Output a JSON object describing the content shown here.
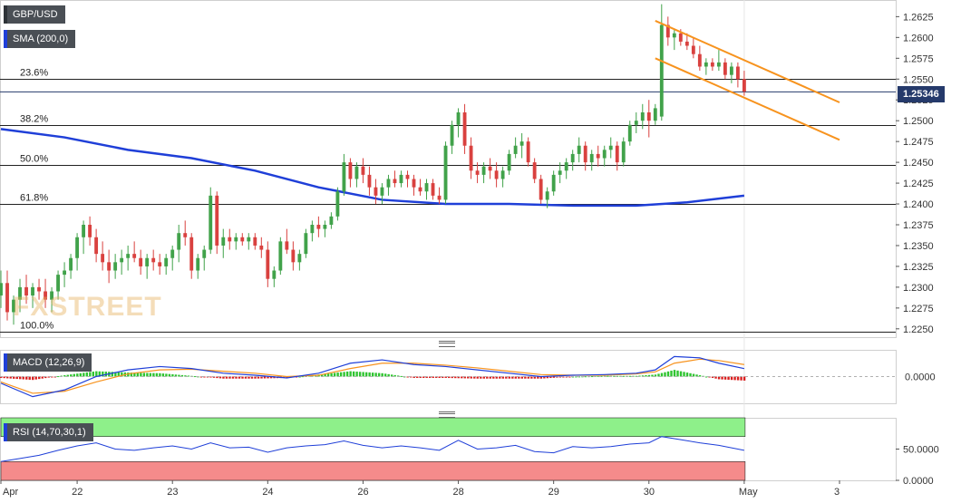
{
  "symbol": "GBP/USD",
  "watermark": "FXSTREET",
  "colors": {
    "bull": "#41a24a",
    "bear": "#d9413f",
    "sma": "#1f3fd8",
    "channel": "#f7931e",
    "macd_line": "#1f3fd8",
    "signal_line": "#f7931e",
    "rsi_line": "#1f3fd8",
    "rsi_overbought_fill": "#8ef08a",
    "rsi_oversold_fill": "#f58b8b"
  },
  "legends": {
    "sma": "SMA (200,0)",
    "macd": "MACD (12,26,9)",
    "rsi": "RSI (14,70,30,1)"
  },
  "current_price": "1.25346",
  "chart_data": [
    {
      "type": "candlestick",
      "panel": "price",
      "ylim": [
        1.224,
        1.2645
      ],
      "y_ticks": [
        "1.2625",
        "1.2600",
        "1.2575",
        "1.2550",
        "1.2525",
        "1.2500",
        "1.2475",
        "1.2450",
        "1.2425",
        "1.2400",
        "1.2375",
        "1.2350",
        "1.2325",
        "1.2300",
        "1.2275",
        "1.2250"
      ],
      "x_ticks": [
        "Apr",
        "22",
        "23",
        "24",
        "26",
        "28",
        "29",
        "30",
        "May",
        "3"
      ],
      "x_tick_positions": [
        0,
        12,
        27,
        42,
        57,
        72,
        87,
        102,
        117,
        132
      ],
      "x_range": [
        0,
        140
      ],
      "bars": [
        [
          0,
          1.229,
          1.232,
          1.2275,
          1.2305
        ],
        [
          1,
          1.2305,
          1.232,
          1.226,
          1.227
        ],
        [
          2,
          1.227,
          1.229,
          1.2255,
          1.2285
        ],
        [
          3,
          1.2285,
          1.231,
          1.227,
          1.23
        ],
        [
          4,
          1.23,
          1.2315,
          1.228,
          1.229
        ],
        [
          5,
          1.229,
          1.2305,
          1.2275,
          1.23
        ],
        [
          6,
          1.23,
          1.231,
          1.2285,
          1.2295
        ],
        [
          7,
          1.2295,
          1.231,
          1.2275,
          1.2285
        ],
        [
          8,
          1.2285,
          1.23,
          1.227,
          1.2295
        ],
        [
          9,
          1.2295,
          1.232,
          1.2285,
          1.2315
        ],
        [
          10,
          1.2315,
          1.233,
          1.23,
          1.232
        ],
        [
          11,
          1.232,
          1.234,
          1.231,
          1.2335
        ],
        [
          12,
          1.2335,
          1.2365,
          1.232,
          1.236
        ],
        [
          13,
          1.236,
          1.238,
          1.234,
          1.2375
        ],
        [
          14,
          1.2375,
          1.2385,
          1.235,
          1.236
        ],
        [
          15,
          1.236,
          1.237,
          1.233,
          1.234
        ],
        [
          16,
          1.234,
          1.2355,
          1.232,
          1.233
        ],
        [
          17,
          1.233,
          1.2345,
          1.2305,
          1.232
        ],
        [
          18,
          1.232,
          1.234,
          1.231,
          1.233
        ],
        [
          19,
          1.233,
          1.2345,
          1.2315,
          1.2335
        ],
        [
          20,
          1.2335,
          1.235,
          1.232,
          1.234
        ],
        [
          21,
          1.234,
          1.2355,
          1.233,
          1.2335
        ],
        [
          22,
          1.2335,
          1.2345,
          1.2315,
          1.2325
        ],
        [
          23,
          1.2325,
          1.234,
          1.231,
          1.2335
        ],
        [
          24,
          1.2335,
          1.2345,
          1.232,
          1.233
        ],
        [
          25,
          1.233,
          1.234,
          1.2315,
          1.2325
        ],
        [
          26,
          1.2325,
          1.234,
          1.2315,
          1.2335
        ],
        [
          27,
          1.2335,
          1.235,
          1.232,
          1.2345
        ],
        [
          28,
          1.2345,
          1.2375,
          1.233,
          1.2365
        ],
        [
          29,
          1.2365,
          1.238,
          1.235,
          1.236
        ],
        [
          30,
          1.236,
          1.2365,
          1.231,
          1.232
        ],
        [
          31,
          1.232,
          1.234,
          1.231,
          1.2335
        ],
        [
          32,
          1.2335,
          1.235,
          1.232,
          1.2345
        ],
        [
          33,
          1.2345,
          1.242,
          1.234,
          1.241
        ],
        [
          34,
          1.241,
          1.2415,
          1.234,
          1.235
        ],
        [
          35,
          1.235,
          1.237,
          1.2335,
          1.236
        ],
        [
          36,
          1.236,
          1.237,
          1.2345,
          1.2355
        ],
        [
          37,
          1.2355,
          1.2365,
          1.2345,
          1.236
        ],
        [
          38,
          1.236,
          1.2365,
          1.235,
          1.2355
        ],
        [
          39,
          1.2355,
          1.2365,
          1.2345,
          1.236
        ],
        [
          40,
          1.236,
          1.2365,
          1.2345,
          1.235
        ],
        [
          41,
          1.235,
          1.236,
          1.2335,
          1.2345
        ],
        [
          42,
          1.2345,
          1.2355,
          1.23,
          1.231
        ],
        [
          43,
          1.231,
          1.2325,
          1.23,
          1.232
        ],
        [
          44,
          1.232,
          1.236,
          1.2315,
          1.2355
        ],
        [
          45,
          1.2355,
          1.237,
          1.234,
          1.2345
        ],
        [
          46,
          1.2345,
          1.2355,
          1.232,
          1.233
        ],
        [
          47,
          1.233,
          1.2345,
          1.232,
          1.234
        ],
        [
          48,
          1.234,
          1.237,
          1.2335,
          1.2365
        ],
        [
          49,
          1.2365,
          1.238,
          1.2355,
          1.2375
        ],
        [
          50,
          1.2375,
          1.2385,
          1.236,
          1.237
        ],
        [
          51,
          1.237,
          1.238,
          1.236,
          1.2375
        ],
        [
          52,
          1.2375,
          1.239,
          1.237,
          1.2385
        ],
        [
          53,
          1.2385,
          1.242,
          1.238,
          1.2415
        ],
        [
          54,
          1.2415,
          1.246,
          1.241,
          1.245
        ],
        [
          55,
          1.245,
          1.2455,
          1.242,
          1.243
        ],
        [
          56,
          1.243,
          1.245,
          1.242,
          1.2445
        ],
        [
          57,
          1.2445,
          1.2455,
          1.2425,
          1.2435
        ],
        [
          58,
          1.2435,
          1.2445,
          1.241,
          1.242
        ],
        [
          59,
          1.242,
          1.243,
          1.24,
          1.241
        ],
        [
          60,
          1.241,
          1.2425,
          1.24,
          1.242
        ],
        [
          61,
          1.242,
          1.2435,
          1.241,
          1.243
        ],
        [
          62,
          1.243,
          1.244,
          1.242,
          1.2425
        ],
        [
          63,
          1.2425,
          1.244,
          1.242,
          1.2435
        ],
        [
          64,
          1.2435,
          1.244,
          1.242,
          1.243
        ],
        [
          65,
          1.243,
          1.2435,
          1.241,
          1.242
        ],
        [
          66,
          1.242,
          1.243,
          1.241,
          1.2415
        ],
        [
          67,
          1.2415,
          1.243,
          1.2405,
          1.2425
        ],
        [
          68,
          1.2425,
          1.243,
          1.2405,
          1.241
        ],
        [
          69,
          1.241,
          1.242,
          1.24,
          1.2405
        ],
        [
          70,
          1.2405,
          1.2475,
          1.24,
          1.247
        ],
        [
          71,
          1.247,
          1.25,
          1.246,
          1.2495
        ],
        [
          72,
          1.2495,
          1.2515,
          1.248,
          1.251
        ],
        [
          73,
          1.251,
          1.252,
          1.246,
          1.247
        ],
        [
          74,
          1.247,
          1.248,
          1.243,
          1.244
        ],
        [
          75,
          1.244,
          1.245,
          1.2425,
          1.2435
        ],
        [
          76,
          1.2435,
          1.245,
          1.2425,
          1.2445
        ],
        [
          77,
          1.2445,
          1.2455,
          1.243,
          1.244
        ],
        [
          78,
          1.244,
          1.245,
          1.242,
          1.243
        ],
        [
          79,
          1.243,
          1.2445,
          1.242,
          1.244
        ],
        [
          80,
          1.244,
          1.2465,
          1.2435,
          1.246
        ],
        [
          81,
          1.246,
          1.248,
          1.2455,
          1.247
        ],
        [
          82,
          1.247,
          1.2485,
          1.2455,
          1.2475
        ],
        [
          83,
          1.2475,
          1.248,
          1.2445,
          1.245
        ],
        [
          84,
          1.245,
          1.2455,
          1.2425,
          1.243
        ],
        [
          85,
          1.243,
          1.2435,
          1.24,
          1.2405
        ],
        [
          86,
          1.2405,
          1.242,
          1.2395,
          1.2415
        ],
        [
          87,
          1.2415,
          1.244,
          1.241,
          1.2435
        ],
        [
          88,
          1.2435,
          1.245,
          1.2425,
          1.244
        ],
        [
          89,
          1.244,
          1.2455,
          1.243,
          1.245
        ],
        [
          90,
          1.245,
          1.2465,
          1.244,
          1.246
        ],
        [
          91,
          1.246,
          1.248,
          1.245,
          1.247
        ],
        [
          92,
          1.247,
          1.2475,
          1.244,
          1.245
        ],
        [
          93,
          1.245,
          1.2465,
          1.244,
          1.246
        ],
        [
          94,
          1.246,
          1.247,
          1.2445,
          1.2455
        ],
        [
          95,
          1.2455,
          1.247,
          1.2445,
          1.2465
        ],
        [
          96,
          1.2465,
          1.248,
          1.2455,
          1.247
        ],
        [
          97,
          1.247,
          1.2475,
          1.244,
          1.245
        ],
        [
          98,
          1.245,
          1.248,
          1.2445,
          1.2475
        ],
        [
          99,
          1.2475,
          1.25,
          1.247,
          1.2495
        ],
        [
          100,
          1.2495,
          1.251,
          1.2485,
          1.25
        ],
        [
          101,
          1.25,
          1.252,
          1.249,
          1.251
        ],
        [
          102,
          1.251,
          1.2525,
          1.248,
          1.25
        ],
        [
          103,
          1.25,
          1.252,
          1.2495,
          1.2515
        ],
        [
          104,
          1.2505,
          1.264,
          1.25,
          1.2615
        ],
        [
          105,
          1.2615,
          1.2625,
          1.259,
          1.26
        ],
        [
          106,
          1.26,
          1.261,
          1.2585,
          1.2605
        ],
        [
          107,
          1.2605,
          1.261,
          1.259,
          1.2595
        ],
        [
          108,
          1.2595,
          1.2605,
          1.2585,
          1.259
        ],
        [
          109,
          1.259,
          1.26,
          1.2575,
          1.258
        ],
        [
          110,
          1.258,
          1.259,
          1.256,
          1.2565
        ],
        [
          111,
          1.2565,
          1.2575,
          1.2555,
          1.257
        ],
        [
          112,
          1.257,
          1.2575,
          1.256,
          1.2565
        ],
        [
          113,
          1.2565,
          1.2585,
          1.256,
          1.257
        ],
        [
          114,
          1.257,
          1.2575,
          1.255,
          1.2555
        ],
        [
          115,
          1.2555,
          1.257,
          1.2545,
          1.2565
        ],
        [
          116,
          1.2565,
          1.257,
          1.254,
          1.255
        ],
        [
          117,
          1.255,
          1.256,
          1.253,
          1.2535
        ]
      ],
      "sma_200": [
        [
          0,
          1.249
        ],
        [
          10,
          1.248
        ],
        [
          20,
          1.2465
        ],
        [
          30,
          1.2455
        ],
        [
          40,
          1.244
        ],
        [
          50,
          1.242
        ],
        [
          60,
          1.2405
        ],
        [
          70,
          1.24
        ],
        [
          80,
          1.24
        ],
        [
          90,
          1.2398
        ],
        [
          100,
          1.2398
        ],
        [
          108,
          1.2402
        ],
        [
          117,
          1.241
        ]
      ],
      "fibonacci": [
        {
          "label": "23.6%",
          "price": 1.255
        },
        {
          "label": "38.2%",
          "price": 1.2495
        },
        {
          "label": "50.0%",
          "price": 1.2447
        },
        {
          "label": "61.8%",
          "price": 1.24
        },
        {
          "label": "100.0%",
          "price": 1.2247
        }
      ],
      "channel": [
        {
          "x1": 103,
          "y1": 1.262,
          "x2": 132,
          "y2": 1.2522
        },
        {
          "x1": 103,
          "y1": 1.2575,
          "x2": 132,
          "y2": 1.2477
        }
      ]
    },
    {
      "type": "macd",
      "panel": "macd",
      "ylim": [
        -0.004,
        0.004
      ],
      "y_ticks": [
        "0.0000"
      ],
      "macd": [
        [
          0,
          -0.001
        ],
        [
          5,
          -0.003
        ],
        [
          10,
          -0.002
        ],
        [
          15,
          0.0
        ],
        [
          20,
          0.001
        ],
        [
          25,
          0.0015
        ],
        [
          30,
          0.0012
        ],
        [
          35,
          0.0005
        ],
        [
          40,
          0.0002
        ],
        [
          45,
          -0.0002
        ],
        [
          50,
          0.0005
        ],
        [
          55,
          0.002
        ],
        [
          60,
          0.0025
        ],
        [
          65,
          0.0018
        ],
        [
          70,
          0.0015
        ],
        [
          75,
          0.001
        ],
        [
          80,
          0.0005
        ],
        [
          85,
          0.0
        ],
        [
          90,
          0.0002
        ],
        [
          95,
          0.0003
        ],
        [
          100,
          0.0005
        ],
        [
          103,
          0.001
        ],
        [
          106,
          0.003
        ],
        [
          110,
          0.0028
        ],
        [
          113,
          0.002
        ],
        [
          117,
          0.0012
        ]
      ],
      "signal": [
        [
          0,
          -0.0008
        ],
        [
          5,
          -0.0025
        ],
        [
          10,
          -0.0022
        ],
        [
          15,
          -0.0008
        ],
        [
          20,
          0.0004
        ],
        [
          25,
          0.001
        ],
        [
          30,
          0.0011
        ],
        [
          35,
          0.0008
        ],
        [
          40,
          0.0005
        ],
        [
          45,
          0.0
        ],
        [
          50,
          0.0002
        ],
        [
          55,
          0.0012
        ],
        [
          60,
          0.002
        ],
        [
          65,
          0.002
        ],
        [
          70,
          0.0017
        ],
        [
          75,
          0.0013
        ],
        [
          80,
          0.0008
        ],
        [
          85,
          0.0003
        ],
        [
          90,
          0.0002
        ],
        [
          95,
          0.0002
        ],
        [
          100,
          0.0004
        ],
        [
          103,
          0.0007
        ],
        [
          106,
          0.002
        ],
        [
          110,
          0.0026
        ],
        [
          113,
          0.0024
        ],
        [
          117,
          0.0018
        ]
      ]
    },
    {
      "type": "rsi",
      "panel": "rsi",
      "ylim": [
        0,
        100
      ],
      "y_ticks": [
        "50.0000",
        "0.0000"
      ],
      "overbought": 70,
      "oversold": 30,
      "values": [
        [
          0,
          30
        ],
        [
          3,
          35
        ],
        [
          6,
          40
        ],
        [
          9,
          48
        ],
        [
          12,
          55
        ],
        [
          15,
          60
        ],
        [
          18,
          50
        ],
        [
          21,
          48
        ],
        [
          24,
          52
        ],
        [
          27,
          55
        ],
        [
          30,
          50
        ],
        [
          33,
          60
        ],
        [
          36,
          52
        ],
        [
          39,
          53
        ],
        [
          42,
          45
        ],
        [
          45,
          52
        ],
        [
          48,
          55
        ],
        [
          51,
          57
        ],
        [
          54,
          63
        ],
        [
          57,
          56
        ],
        [
          60,
          52
        ],
        [
          63,
          55
        ],
        [
          66,
          52
        ],
        [
          69,
          48
        ],
        [
          72,
          64
        ],
        [
          75,
          50
        ],
        [
          78,
          52
        ],
        [
          81,
          56
        ],
        [
          84,
          46
        ],
        [
          87,
          44
        ],
        [
          90,
          54
        ],
        [
          93,
          52
        ],
        [
          96,
          54
        ],
        [
          99,
          58
        ],
        [
          102,
          60
        ],
        [
          104,
          70
        ],
        [
          107,
          65
        ],
        [
          110,
          60
        ],
        [
          113,
          56
        ],
        [
          117,
          48
        ]
      ]
    }
  ]
}
